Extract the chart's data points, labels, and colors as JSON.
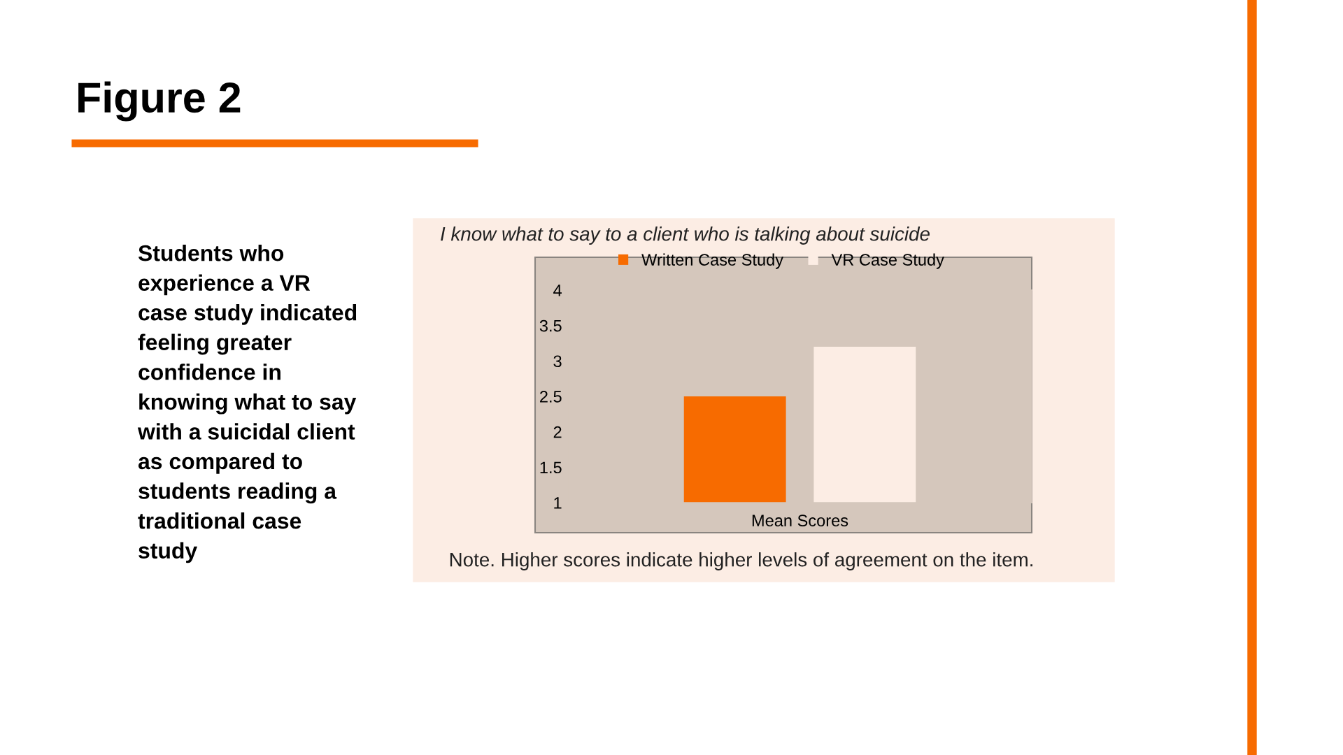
{
  "chart_data": {
    "type": "bar",
    "title": "Figure 2",
    "subtitle": "I know what to say to a client who is talking about suicide",
    "categories": [
      "Mean Scores"
    ],
    "series": [
      {
        "name": "Written Case Study",
        "color": "#f76b00",
        "values": [
          2.5
        ]
      },
      {
        "name": "VR Case Study",
        "color": "#fcede4",
        "values": [
          3.2
        ]
      }
    ],
    "ylim": [
      1,
      4
    ],
    "yticks": [
      1,
      1.5,
      2,
      2.5,
      3,
      3.5,
      4
    ],
    "grid": false,
    "legend": "top",
    "annotations": [
      "Students who experience a VR case study indicated feeling greater confidence in knowing what to say with a suicidal client as compared to students reading a traditional case study",
      "Note. Higher scores indicate higher levels of agreement on the item."
    ]
  }
}
